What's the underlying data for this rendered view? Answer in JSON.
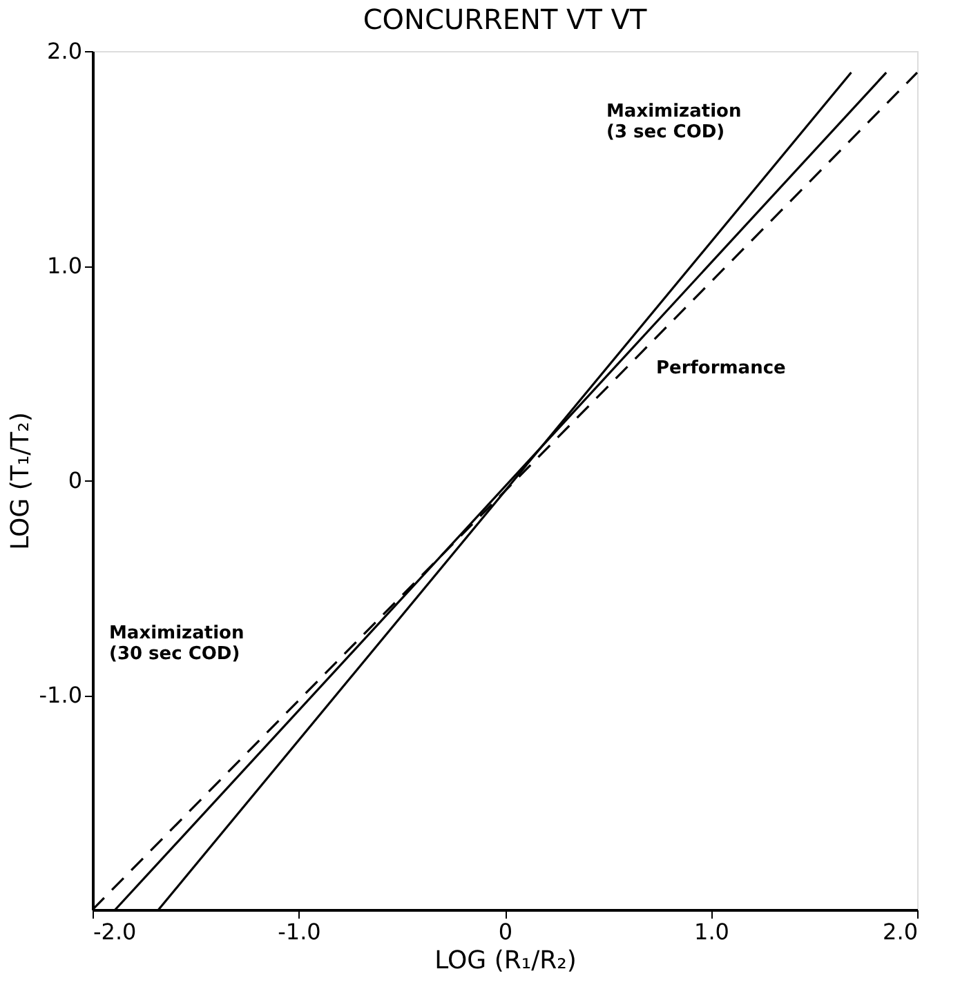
{
  "chart_data": {
    "type": "line",
    "title": "CONCURRENT VT VT",
    "xlabel": "LOG (R₁/R₂)",
    "ylabel": "LOG (T₁/T₂)",
    "series": [
      {
        "x": [
          -2.0,
          2.0
        ],
        "values": [
          -2.0,
          1.9
        ],
        "color": "#000000",
        "line_style": "dashed"
      },
      {
        "x": [
          -1.89,
          1.85
        ],
        "values": [
          -2.0,
          1.9
        ],
        "color": "#000000",
        "line_style": "solid"
      },
      {
        "x": [
          -1.68,
          1.68
        ],
        "values": [
          -2.0,
          1.9
        ],
        "color": "#000000",
        "line_style": "solid"
      }
    ],
    "xlim": [
      -2.0,
      2.0
    ],
    "ylim": [
      -2.0,
      2.0
    ],
    "xticks": [
      {
        "value": -2,
        "label": "-2.0"
      },
      {
        "value": -1,
        "label": "-1.0"
      },
      0,
      {
        "value": 1,
        "label": "1.0"
      },
      {
        "value": 2,
        "label": "2.0"
      }
    ],
    "yticks": [
      {
        "value": -1,
        "label": "-1.0"
      },
      0,
      {
        "value": 1,
        "label": "1.0"
      },
      {
        "value": 2,
        "label": "2.0"
      }
    ],
    "annotations": [
      "Maximization\n(3 sec COD)",
      "Performance",
      "Maximization\n(30 sec COD)"
    ],
    "grid": false,
    "marker": "none"
  }
}
